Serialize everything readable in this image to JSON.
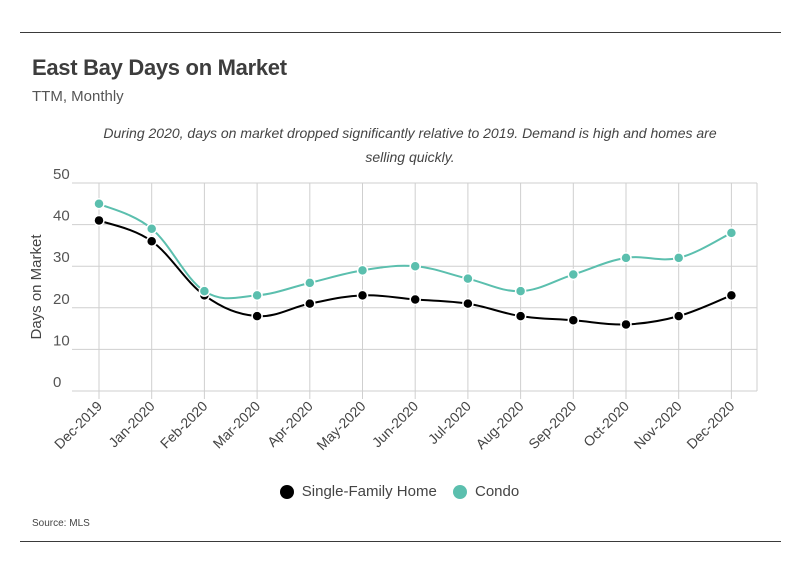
{
  "header": {
    "title": "East Bay Days on Market",
    "subtitle": "TTM, Monthly",
    "note": "During 2020, days on market dropped significantly relative to 2019. Demand is high and homes are selling quickly."
  },
  "footer": {
    "source": "Source:  MLS"
  },
  "chart_data": {
    "type": "line",
    "title": "East Bay Days on Market",
    "subtitle": "TTM, Monthly",
    "xlabel": "",
    "ylabel": "Days on Market",
    "categories": [
      "Dec-2019",
      "Jan-2020",
      "Feb-2020",
      "Mar-2020",
      "Apr-2020",
      "May-2020",
      "Jun-2020",
      "Jul-2020",
      "Aug-2020",
      "Sep-2020",
      "Oct-2020",
      "Nov-2020",
      "Dec-2020"
    ],
    "ylim": [
      0,
      50
    ],
    "yticks": [
      0,
      10,
      20,
      30,
      40,
      50
    ],
    "grid": true,
    "legend": "bottom-center",
    "series": [
      {
        "name": "Single-Family Home",
        "color": "#000000",
        "values": [
          41,
          36,
          23,
          18,
          21,
          23,
          22,
          21,
          18,
          17,
          16,
          18,
          23
        ]
      },
      {
        "name": "Condo",
        "color": "#5bbfae",
        "values": [
          45,
          39,
          24,
          23,
          26,
          29,
          30,
          27,
          24,
          28,
          32,
          32,
          38
        ]
      }
    ]
  }
}
